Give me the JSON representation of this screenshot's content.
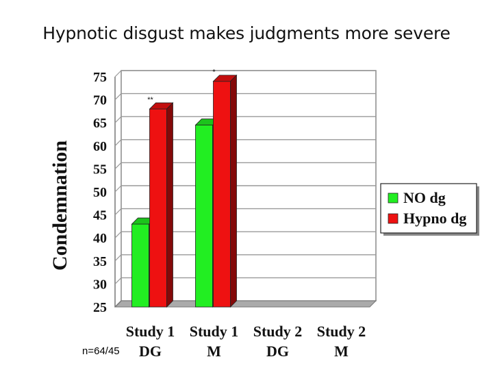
{
  "page": {
    "title": "Hypnotic disgust makes judgments more severe",
    "sample_note": "n=64/45"
  },
  "chart_data": {
    "type": "bar",
    "title": "Hypnotic disgust makes judgments more severe",
    "xlabel": "",
    "ylabel": "Condemnation",
    "ylim": [
      25,
      75
    ],
    "yticks": [
      25,
      30,
      35,
      40,
      45,
      50,
      55,
      60,
      65,
      70,
      75
    ],
    "categories": [
      [
        "Study 1",
        "DG"
      ],
      [
        "Study 1",
        "M"
      ],
      [
        "Study 2",
        "DG"
      ],
      [
        "Study 2",
        "M"
      ]
    ],
    "series": [
      {
        "name": "NO dg",
        "color": "#22ee22",
        "values": [
          43,
          64.5,
          null,
          null
        ]
      },
      {
        "name": "Hypno dg",
        "color": "#ee1111",
        "values": [
          68,
          74,
          null,
          null
        ]
      }
    ],
    "annotations": [
      {
        "category_index": 0,
        "text": "**"
      },
      {
        "category_index": 1,
        "text": "*"
      }
    ],
    "grid": true,
    "legend_position": "right",
    "style": "3d"
  }
}
